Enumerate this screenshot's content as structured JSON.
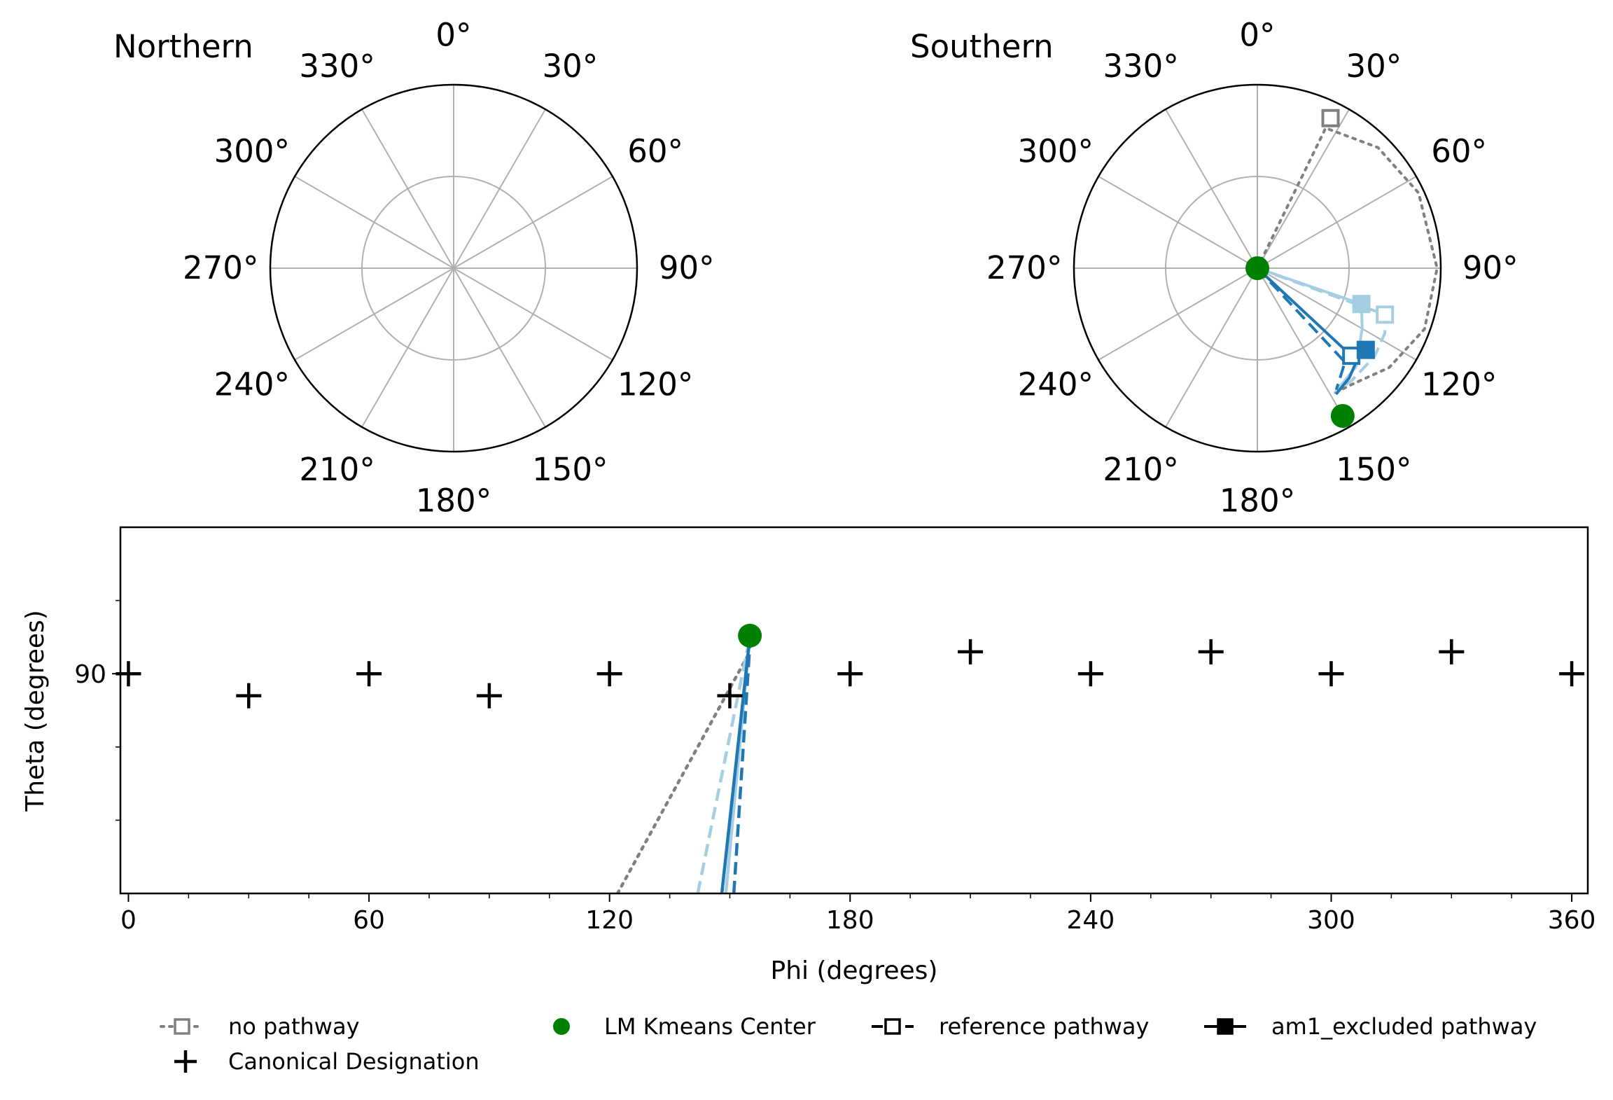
{
  "chart_data": [
    {
      "type": "polar",
      "title": "Northern",
      "angle_ticks": [
        {
          "deg": 0,
          "label": "0°"
        },
        {
          "deg": 30,
          "label": "30°"
        },
        {
          "deg": 60,
          "label": "60°"
        },
        {
          "deg": 90,
          "label": "90°"
        },
        {
          "deg": 120,
          "label": "120°"
        },
        {
          "deg": 150,
          "label": "150°"
        },
        {
          "deg": 180,
          "label": "180°"
        },
        {
          "deg": 210,
          "label": "210°"
        },
        {
          "deg": 240,
          "label": "240°"
        },
        {
          "deg": 270,
          "label": "270°"
        },
        {
          "deg": 300,
          "label": "300°"
        },
        {
          "deg": 330,
          "label": "330°"
        }
      ],
      "radial_grid": [
        0.5
      ],
      "series": []
    },
    {
      "type": "polar",
      "title": "Southern",
      "angle_ticks": [
        {
          "deg": 0,
          "label": "0°"
        },
        {
          "deg": 30,
          "label": "30°"
        },
        {
          "deg": 60,
          "label": "60°"
        },
        {
          "deg": 90,
          "label": "90°"
        },
        {
          "deg": 120,
          "label": "120°"
        },
        {
          "deg": 150,
          "label": "150°"
        },
        {
          "deg": 180,
          "label": "180°"
        },
        {
          "deg": 210,
          "label": "210°"
        },
        {
          "deg": 240,
          "label": "240°"
        },
        {
          "deg": 270,
          "label": "270°"
        },
        {
          "deg": 300,
          "label": "300°"
        },
        {
          "deg": 330,
          "label": "330°"
        }
      ],
      "radial_grid": [
        0.5
      ],
      "series": [
        {
          "legend": "no pathway",
          "color": "#808080",
          "dash": "dotted",
          "points": [
            [
              0,
              0
            ],
            [
              26,
              0.85
            ],
            [
              45,
              0.93
            ],
            [
              65,
              0.97
            ],
            [
              90,
              0.98
            ],
            [
              110,
              0.97
            ],
            [
              127,
              0.9
            ],
            [
              140,
              0.82
            ],
            [
              148,
              0.8
            ]
          ]
        },
        {
          "color": "#a6cee3",
          "dash": "dashed",
          "points": [
            [
              0,
              0
            ],
            [
              110,
              0.74
            ],
            [
              117,
              0.78
            ],
            [
              127,
              0.8
            ],
            [
              140,
              0.8
            ],
            [
              148,
              0.8
            ]
          ]
        },
        {
          "color": "#a6cee3",
          "dash": "solid",
          "points": [
            [
              0,
              0
            ],
            [
              109,
              0.6
            ],
            [
              120,
              0.66
            ],
            [
              135,
              0.76
            ],
            [
              148,
              0.8
            ]
          ]
        },
        {
          "legend": "reference pathway",
          "color": "#1f77b4",
          "dash": "dashed",
          "points": [
            [
              0,
              0
            ],
            [
              137,
              0.7
            ],
            [
              142,
              0.74
            ],
            [
              147,
              0.79
            ]
          ]
        },
        {
          "legend": "am1_excluded pathway",
          "color": "#1f77b4",
          "dash": "solid",
          "points": [
            [
              0,
              0
            ],
            [
              133,
              0.74
            ],
            [
              140,
              0.78
            ],
            [
              148,
              0.81
            ]
          ]
        }
      ],
      "markers": [
        {
          "color": "#808080",
          "shape": "square-open",
          "theta": 26,
          "r": 0.91
        },
        {
          "color": "#a6cee3",
          "shape": "square-open",
          "theta": 110,
          "r": 0.74
        },
        {
          "color": "#a6cee3",
          "shape": "square-filled",
          "theta": 109,
          "r": 0.6
        },
        {
          "color": "#1f77b4",
          "shape": "square-open",
          "theta": 133,
          "r": 0.7
        },
        {
          "color": "#1f77b4",
          "shape": "square-filled",
          "theta": 127,
          "r": 0.74
        },
        {
          "color": "#008000",
          "shape": "circle",
          "theta": 0,
          "r": 0
        },
        {
          "color": "#008000",
          "shape": "circle",
          "theta": 150,
          "r": 0.93
        }
      ]
    },
    {
      "type": "line",
      "xlabel": "Phi (degrees)",
      "ylabel": "Theta (degrees)",
      "xlim": [
        -2,
        364
      ],
      "ylim": [
        60,
        110
      ],
      "xticks": [
        0,
        60,
        120,
        180,
        240,
        300,
        360
      ],
      "xtick_labels": [
        "0",
        "60",
        "120",
        "180",
        "240",
        "300",
        "360"
      ],
      "yticks": [
        90
      ],
      "ytick_labels": [
        "90"
      ],
      "series": [
        {
          "color": "#808080",
          "dash": "dotted",
          "x": [
            122,
            155
          ],
          "y": [
            60,
            93
          ]
        },
        {
          "color": "#a6cee3",
          "dash": "dashed",
          "x": [
            142,
            155
          ],
          "y": [
            60,
            95
          ]
        },
        {
          "color": "#a6cee3",
          "dash": "solid",
          "x": [
            149,
            155
          ],
          "y": [
            60,
            95
          ]
        },
        {
          "color": "#1f77b4",
          "dash": "solid",
          "x": [
            148,
            155
          ],
          "y": [
            60,
            95
          ]
        },
        {
          "color": "#1f77b4",
          "dash": "dashed",
          "x": [
            151,
            155
          ],
          "y": [
            60,
            94
          ]
        }
      ],
      "kmeans_center": {
        "x": 155,
        "y": 95.2
      },
      "canonical": {
        "x": [
          0,
          30,
          60,
          90,
          120,
          150,
          180,
          210,
          240,
          270,
          300,
          330,
          360
        ],
        "y": [
          90,
          87,
          90,
          87,
          90,
          87,
          90,
          93,
          90,
          93,
          90,
          93,
          90
        ]
      }
    }
  ],
  "legend": [
    {
      "label": "no pathway",
      "kind": "dotted-open-square",
      "color": "#808080"
    },
    {
      "label": "LM Kmeans Center",
      "kind": "dot",
      "color": "#008000"
    },
    {
      "label": "reference pathway",
      "kind": "dashed-open-square",
      "color": "#000000"
    },
    {
      "label": "am1_excluded pathway",
      "kind": "solid-filled-square",
      "color": "#000000"
    },
    {
      "label": "Canonical Designation",
      "kind": "plus",
      "color": "#000000"
    }
  ]
}
